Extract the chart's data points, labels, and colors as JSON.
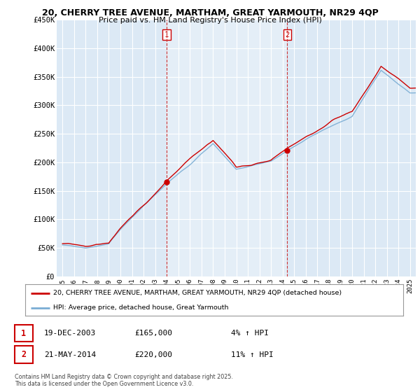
{
  "title_line1": "20, CHERRY TREE AVENUE, MARTHAM, GREAT YARMOUTH, NR29 4QP",
  "title_line2": "Price paid vs. HM Land Registry's House Price Index (HPI)",
  "legend_label_red": "20, CHERRY TREE AVENUE, MARTHAM, GREAT YARMOUTH, NR29 4QP (detached house)",
  "legend_label_blue": "HPI: Average price, detached house, Great Yarmouth",
  "annotation1_date": "19-DEC-2003",
  "annotation1_price": "£165,000",
  "annotation1_hpi": "4% ↑ HPI",
  "annotation2_date": "21-MAY-2014",
  "annotation2_price": "£220,000",
  "annotation2_hpi": "11% ↑ HPI",
  "copyright_text": "Contains HM Land Registry data © Crown copyright and database right 2025.\nThis data is licensed under the Open Government Licence v3.0.",
  "vline1_year": 2004.0,
  "vline2_year": 2014.4,
  "sale1_year": 2004.0,
  "sale1_price": 165000,
  "sale2_year": 2014.4,
  "sale2_price": 220000,
  "plot_bg_color": "#dce9f5",
  "highlight_color": "#e8f0f8",
  "red_color": "#cc0000",
  "blue_color": "#7aadd4",
  "vline_color": "#cc3333",
  "grid_color": "#ffffff",
  "ylim_min": 0,
  "ylim_max": 450000,
  "xlim_min": 1994.5,
  "xlim_max": 2025.5
}
